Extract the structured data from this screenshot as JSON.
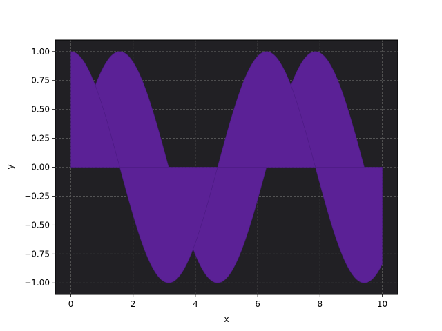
{
  "chart_data": {
    "type": "area",
    "title": "",
    "xlabel": "x",
    "ylabel": "y",
    "xlim": [
      -0.5,
      10.5
    ],
    "ylim": [
      -1.1,
      1.1
    ],
    "x_ticks": [
      0,
      2,
      4,
      6,
      8,
      10
    ],
    "x_tick_labels": [
      "0",
      "2",
      "4",
      "6",
      "8",
      "10"
    ],
    "y_ticks": [
      -1.0,
      -0.75,
      -0.5,
      -0.25,
      0.0,
      0.25,
      0.5,
      0.75,
      1.0
    ],
    "y_tick_labels": [
      "−1.00",
      "−0.75",
      "−0.50",
      "−0.25",
      "0.00",
      "0.25",
      "0.50",
      "0.75",
      "1.00"
    ],
    "grid": true,
    "x_range": [
      0,
      10
    ],
    "series": [
      {
        "function": "sin(x)",
        "fill_to": 0,
        "color": "#5b2196"
      },
      {
        "function": "cos(x)",
        "fill_to": 0,
        "color": "#5b2196"
      }
    ],
    "colors": {
      "plot_background": "#212024",
      "fill": "#5b2196",
      "grid": "#5c5c5c"
    }
  }
}
